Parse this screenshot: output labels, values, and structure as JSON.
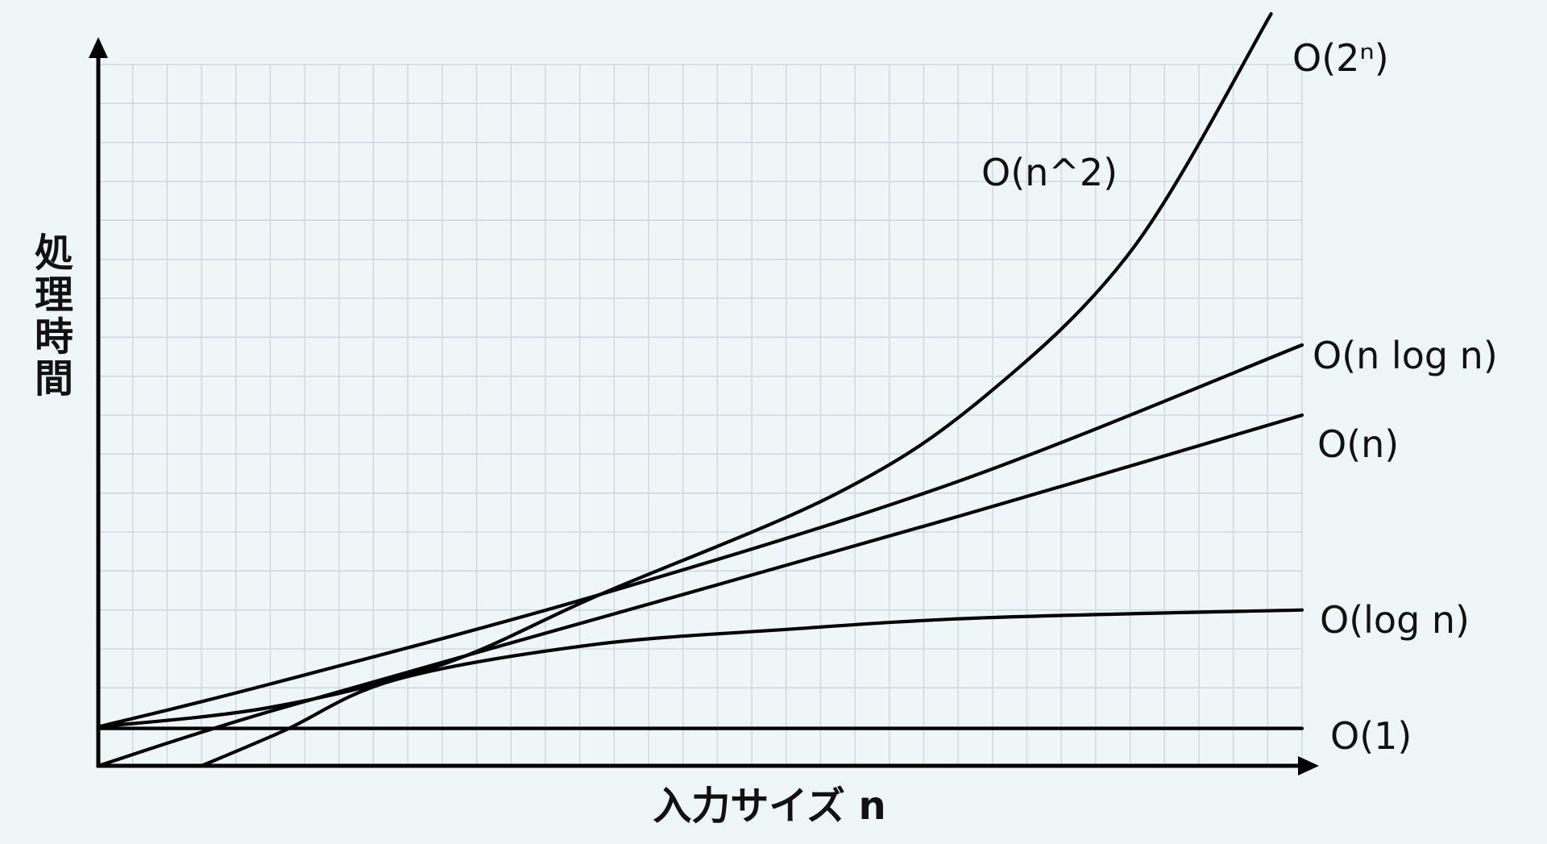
{
  "chart_data": {
    "type": "line",
    "title": "",
    "xlabel": "入力サイズ n",
    "ylabel": "処理時間",
    "xlim": [
      0,
      35
    ],
    "ylim": [
      0,
      18
    ],
    "grid": true,
    "legend": "none (labels at curve ends, right)",
    "colors": {
      "background": "#eef6f8",
      "grid": "#c9d6dc",
      "lines": "#000000"
    },
    "series": [
      {
        "name": "O(2ⁿ)",
        "points": [
          [
            0,
            1
          ],
          [
            5,
            1.5
          ],
          [
            10,
            2.6
          ],
          [
            14.6,
            4.4
          ],
          [
            21.5,
            7.0
          ],
          [
            25.8,
            9.5
          ],
          [
            30.1,
            13.3
          ],
          [
            34.1,
            19.3
          ]
        ]
      },
      {
        "name": "O(n^2)",
        "points": []
      },
      {
        "name": "O(n log n)",
        "points": [
          [
            0,
            1
          ],
          [
            5,
            2.1
          ],
          [
            14.6,
            4.4
          ],
          [
            25,
            7.3
          ],
          [
            35,
            10.8
          ]
        ]
      },
      {
        "name": "O(n)",
        "points": [
          [
            0,
            0
          ],
          [
            5,
            1.4
          ],
          [
            15,
            3.9
          ],
          [
            25,
            6.4
          ],
          [
            35,
            9.0
          ]
        ]
      },
      {
        "name": "O(log n)",
        "points": [
          [
            3,
            0
          ],
          [
            5.4,
            0.9
          ],
          [
            8.6,
            2.2
          ],
          [
            14.3,
            3.1
          ],
          [
            20,
            3.5
          ],
          [
            25.8,
            3.8
          ],
          [
            35,
            4.0
          ]
        ]
      },
      {
        "name": "O(1)",
        "points": [
          [
            0,
            0.96
          ],
          [
            35,
            0.96
          ]
        ]
      }
    ]
  }
}
